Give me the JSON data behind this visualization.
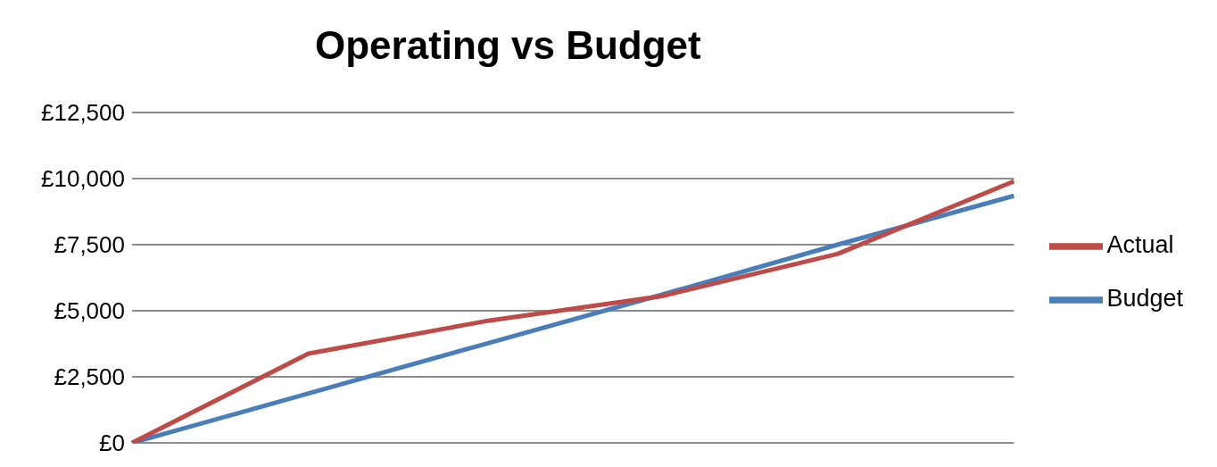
{
  "chart_data": {
    "type": "line",
    "title": "Operating vs Budget",
    "categories": [
      null,
      null,
      null,
      null,
      null,
      null
    ],
    "series": [
      {
        "name": "Budget",
        "color": "#4a7ebb",
        "values": [
          0,
          1870,
          3740,
          5600,
          7500,
          9350
        ]
      },
      {
        "name": "Actual",
        "color": "#be4b48",
        "values": [
          0,
          3380,
          4600,
          5550,
          7150,
          9900
        ]
      }
    ],
    "ylim": [
      0,
      12500
    ],
    "yticks": [
      {
        "value": 0,
        "label": "£0"
      },
      {
        "value": 2500,
        "label": "£2,500"
      },
      {
        "value": 5000,
        "label": "£5,000"
      },
      {
        "value": 7500,
        "label": "£7,500"
      },
      {
        "value": 10000,
        "label": "£10,000"
      },
      {
        "value": 12500,
        "label": "£12,500"
      }
    ],
    "grid": "y",
    "legend": "right"
  }
}
